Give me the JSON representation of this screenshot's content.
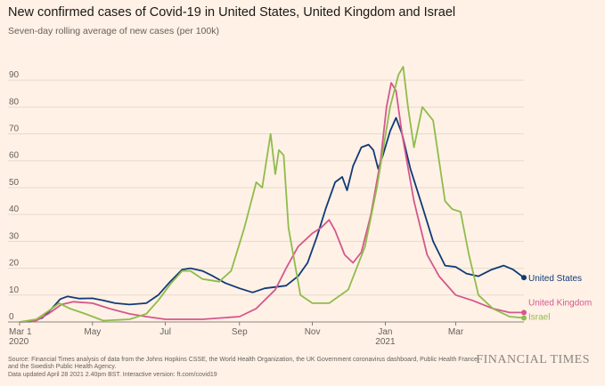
{
  "title": "New confirmed cases of Covid-19 in United States, United Kingdom and Israel",
  "subtitle": "Seven-day rolling average of new cases (per 100k)",
  "source_line": "Source: Financial Times analysis of data from the Johns Hopkins CSSE, the World Health Organization, the UK Government coronavirus dashboard, Public Health France and the Swedish Public Health Agency.",
  "updated_line": "Data updated April 28 2021 2.40pm BST. Interactive version: ft.com/covid19",
  "brand": "FINANCIAL TIMES",
  "colors": {
    "background": "#fff1e5",
    "United States": "#0f3a78",
    "United Kingdom": "#d4578d",
    "Israel": "#8fbc4b",
    "grid": "#e6d9ce"
  },
  "chart_data": {
    "type": "line",
    "title": "New confirmed cases of Covid-19 in United States, United Kingdom and Israel",
    "ylabel": "Seven-day rolling average of new cases (per 100k)",
    "x_unit": "date",
    "xlim": [
      "2020-03-01",
      "2021-04-27"
    ],
    "ylim": [
      0,
      95
    ],
    "yticks": [
      0,
      10,
      20,
      30,
      40,
      50,
      60,
      70,
      80,
      90
    ],
    "xticks": [
      {
        "date": "2020-03-01",
        "label": "Mar 1",
        "sublabel": "2020"
      },
      {
        "date": "2020-05-01",
        "label": "May",
        "sublabel": ""
      },
      {
        "date": "2020-07-01",
        "label": "Jul",
        "sublabel": ""
      },
      {
        "date": "2020-09-01",
        "label": "Sep",
        "sublabel": ""
      },
      {
        "date": "2020-11-01",
        "label": "Nov",
        "sublabel": ""
      },
      {
        "date": "2021-01-01",
        "label": "Jan",
        "sublabel": "2021"
      },
      {
        "date": "2021-03-01",
        "label": "Mar",
        "sublabel": ""
      }
    ],
    "grid": true,
    "legend": "direct labels at line ends",
    "series": [
      {
        "name": "United States",
        "marker_at_end": true,
        "points": [
          [
            "2020-03-01",
            0
          ],
          [
            "2020-03-10",
            0.2
          ],
          [
            "2020-03-20",
            1.5
          ],
          [
            "2020-03-28",
            5
          ],
          [
            "2020-04-04",
            8.5
          ],
          [
            "2020-04-10",
            9.5
          ],
          [
            "2020-04-20",
            8.7
          ],
          [
            "2020-05-01",
            8.8
          ],
          [
            "2020-05-10",
            8
          ],
          [
            "2020-05-20",
            7
          ],
          [
            "2020-06-01",
            6.5
          ],
          [
            "2020-06-15",
            7
          ],
          [
            "2020-06-25",
            10
          ],
          [
            "2020-07-05",
            15
          ],
          [
            "2020-07-15",
            19.5
          ],
          [
            "2020-07-22",
            20
          ],
          [
            "2020-08-01",
            19
          ],
          [
            "2020-08-10",
            17
          ],
          [
            "2020-08-20",
            14.5
          ],
          [
            "2020-09-01",
            12.5
          ],
          [
            "2020-09-12",
            11
          ],
          [
            "2020-09-22",
            12.5
          ],
          [
            "2020-10-01",
            13
          ],
          [
            "2020-10-10",
            13.5
          ],
          [
            "2020-10-20",
            17
          ],
          [
            "2020-10-28",
            22
          ],
          [
            "2020-11-05",
            32
          ],
          [
            "2020-11-12",
            42
          ],
          [
            "2020-11-20",
            52
          ],
          [
            "2020-11-26",
            54
          ],
          [
            "2020-11-30",
            49
          ],
          [
            "2020-12-05",
            58
          ],
          [
            "2020-12-12",
            65
          ],
          [
            "2020-12-18",
            66
          ],
          [
            "2020-12-22",
            64
          ],
          [
            "2020-12-26",
            57
          ],
          [
            "2020-12-30",
            62
          ],
          [
            "2021-01-05",
            71
          ],
          [
            "2021-01-10",
            76
          ],
          [
            "2021-01-15",
            70
          ],
          [
            "2021-01-22",
            57
          ],
          [
            "2021-02-01",
            43
          ],
          [
            "2021-02-10",
            30
          ],
          [
            "2021-02-20",
            21
          ],
          [
            "2021-03-01",
            20.5
          ],
          [
            "2021-03-10",
            18
          ],
          [
            "2021-03-20",
            17
          ],
          [
            "2021-03-31",
            19.5
          ],
          [
            "2021-04-10",
            21
          ],
          [
            "2021-04-18",
            19.5
          ],
          [
            "2021-04-27",
            16.5
          ]
        ]
      },
      {
        "name": "United Kingdom",
        "marker_at_end": true,
        "points": [
          [
            "2020-03-01",
            0
          ],
          [
            "2020-03-15",
            0.5
          ],
          [
            "2020-03-25",
            3
          ],
          [
            "2020-04-05",
            6.5
          ],
          [
            "2020-04-15",
            7.5
          ],
          [
            "2020-05-01",
            7
          ],
          [
            "2020-05-15",
            5
          ],
          [
            "2020-06-01",
            3
          ],
          [
            "2020-06-15",
            2
          ],
          [
            "2020-07-01",
            1
          ],
          [
            "2020-08-01",
            1
          ],
          [
            "2020-09-01",
            2
          ],
          [
            "2020-09-15",
            5
          ],
          [
            "2020-10-01",
            12
          ],
          [
            "2020-10-10",
            20
          ],
          [
            "2020-10-20",
            28
          ],
          [
            "2020-11-01",
            33
          ],
          [
            "2020-11-08",
            35
          ],
          [
            "2020-11-15",
            38
          ],
          [
            "2020-11-20",
            34
          ],
          [
            "2020-11-28",
            25
          ],
          [
            "2020-12-05",
            22
          ],
          [
            "2020-12-12",
            26
          ],
          [
            "2020-12-20",
            40
          ],
          [
            "2020-12-28",
            60
          ],
          [
            "2021-01-02",
            80
          ],
          [
            "2021-01-06",
            89
          ],
          [
            "2021-01-10",
            86
          ],
          [
            "2021-01-15",
            70
          ],
          [
            "2021-01-25",
            45
          ],
          [
            "2021-02-05",
            25
          ],
          [
            "2021-02-15",
            17
          ],
          [
            "2021-03-01",
            10
          ],
          [
            "2021-03-15",
            8
          ],
          [
            "2021-04-01",
            5
          ],
          [
            "2021-04-15",
            3.5
          ],
          [
            "2021-04-27",
            3.5
          ]
        ]
      },
      {
        "name": "Israel",
        "marker_at_end": true,
        "points": [
          [
            "2020-03-01",
            0
          ],
          [
            "2020-03-15",
            1
          ],
          [
            "2020-03-25",
            4
          ],
          [
            "2020-04-03",
            7
          ],
          [
            "2020-04-12",
            5
          ],
          [
            "2020-04-25",
            3
          ],
          [
            "2020-05-10",
            0.5
          ],
          [
            "2020-06-01",
            1
          ],
          [
            "2020-06-15",
            3
          ],
          [
            "2020-06-25",
            8
          ],
          [
            "2020-07-05",
            14
          ],
          [
            "2020-07-15",
            19
          ],
          [
            "2020-07-22",
            19
          ],
          [
            "2020-08-01",
            16
          ],
          [
            "2020-08-15",
            15
          ],
          [
            "2020-08-25",
            19
          ],
          [
            "2020-09-05",
            35
          ],
          [
            "2020-09-15",
            52
          ],
          [
            "2020-09-20",
            50
          ],
          [
            "2020-09-27",
            70
          ],
          [
            "2020-10-01",
            55
          ],
          [
            "2020-10-04",
            64
          ],
          [
            "2020-10-08",
            62
          ],
          [
            "2020-10-12",
            35
          ],
          [
            "2020-10-22",
            10
          ],
          [
            "2020-11-01",
            7
          ],
          [
            "2020-11-15",
            7
          ],
          [
            "2020-12-01",
            12
          ],
          [
            "2020-12-15",
            28
          ],
          [
            "2020-12-25",
            50
          ],
          [
            "2021-01-05",
            80
          ],
          [
            "2021-01-12",
            92
          ],
          [
            "2021-01-16",
            95
          ],
          [
            "2021-01-20",
            80
          ],
          [
            "2021-01-25",
            65
          ],
          [
            "2021-02-01",
            80
          ],
          [
            "2021-02-10",
            75
          ],
          [
            "2021-02-20",
            45
          ],
          [
            "2021-02-26",
            42
          ],
          [
            "2021-03-05",
            41
          ],
          [
            "2021-03-12",
            25
          ],
          [
            "2021-03-20",
            10
          ],
          [
            "2021-04-01",
            5
          ],
          [
            "2021-04-15",
            2
          ],
          [
            "2021-04-27",
            1.5
          ]
        ]
      }
    ]
  }
}
